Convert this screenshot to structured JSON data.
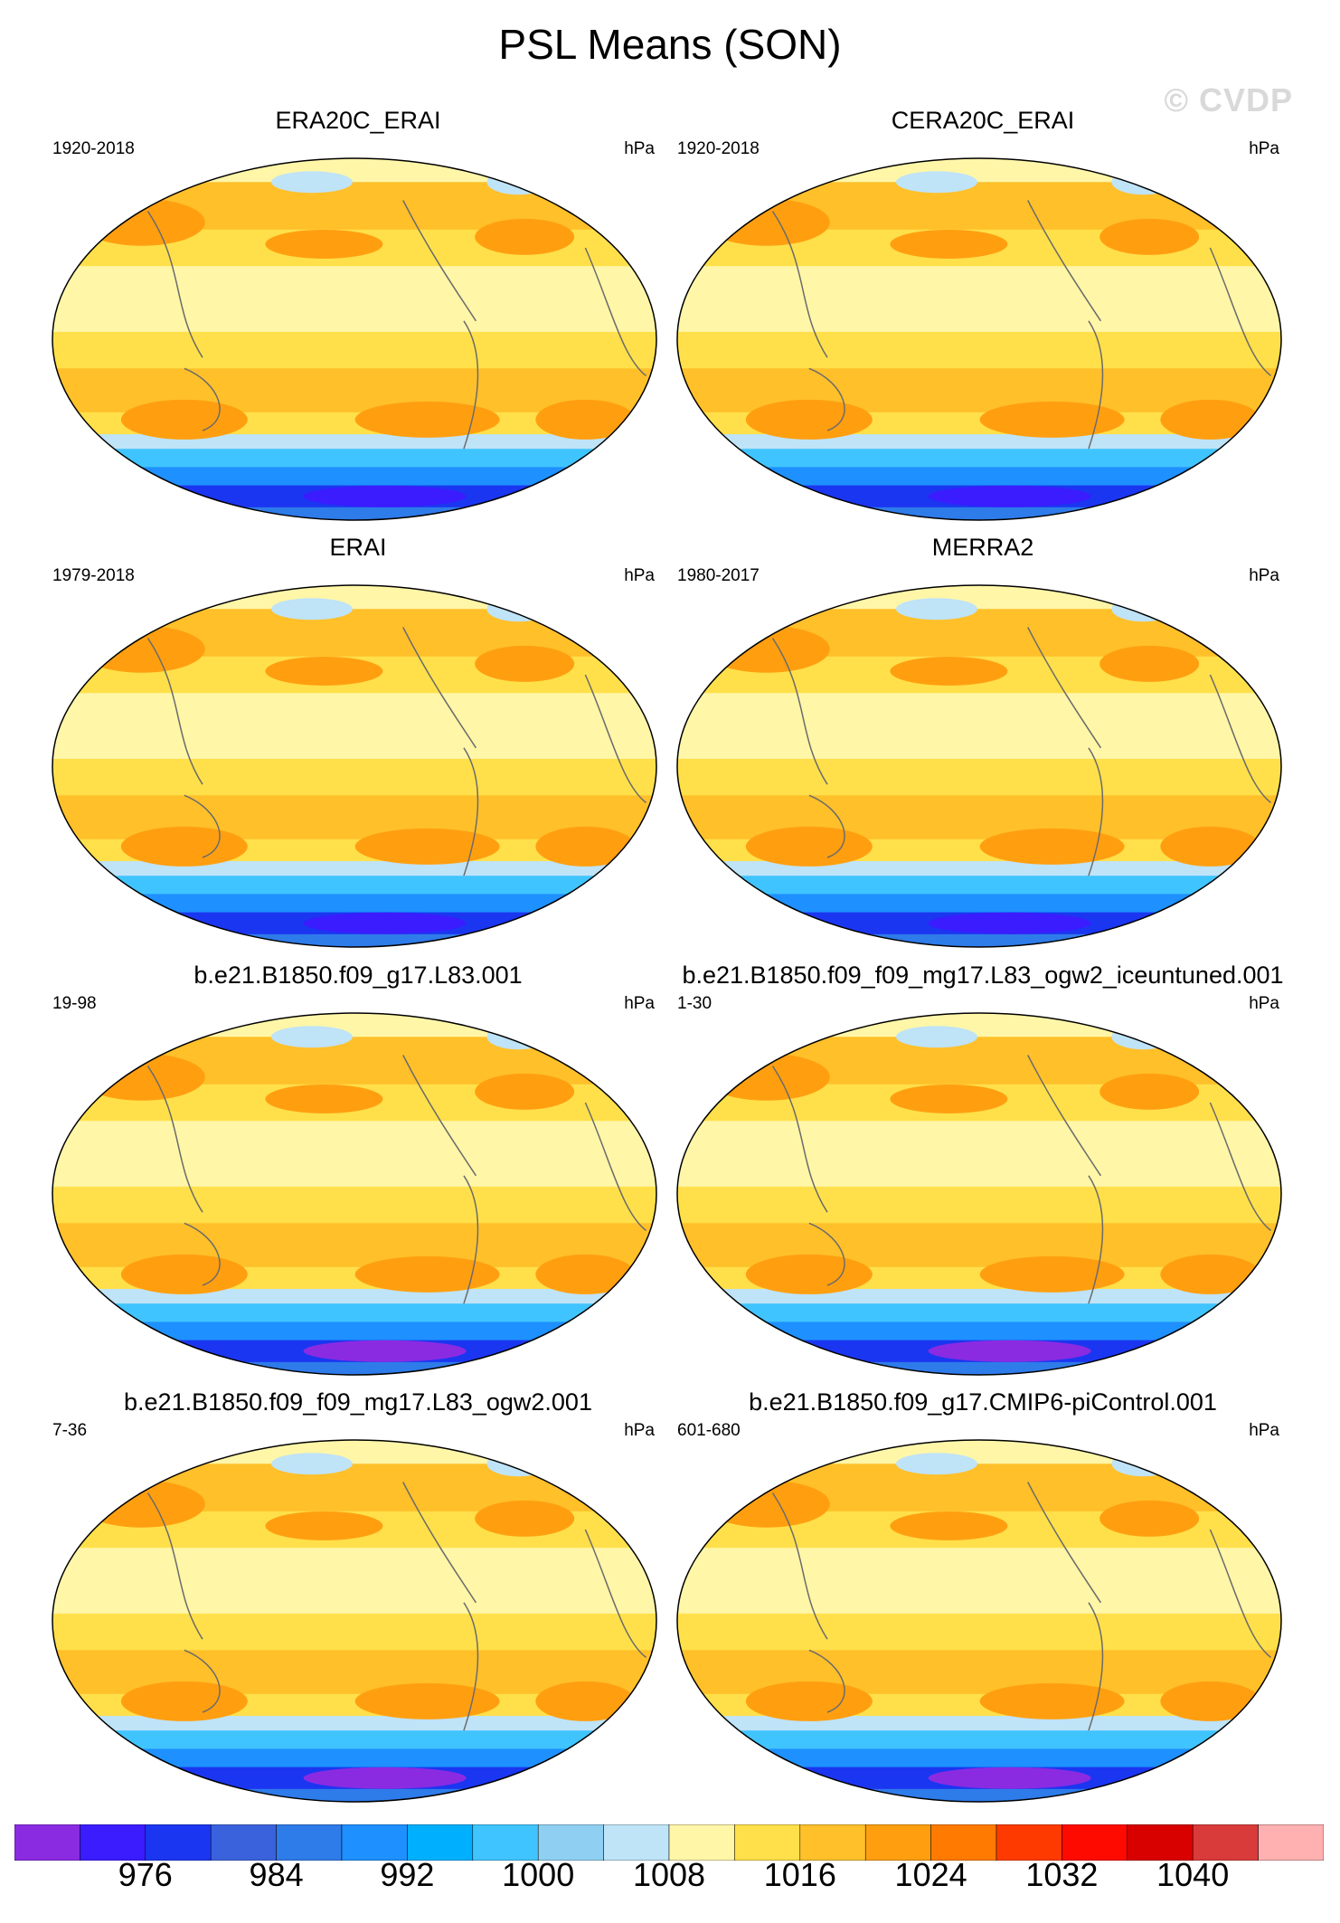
{
  "title": "PSL Means (SON)",
  "watermark": "© CVDP",
  "panels": [
    {
      "name": "ERA20C_ERAI",
      "years": "1920-2018",
      "unit": "hPa"
    },
    {
      "name": "CERA20C_ERAI",
      "years": "1920-2018",
      "unit": "hPa"
    },
    {
      "name": "ERAI",
      "years": "1979-2018",
      "unit": "hPa"
    },
    {
      "name": "MERRA2",
      "years": "1980-2017",
      "unit": "hPa"
    },
    {
      "name": "b.e21.B1850.f09_g17.L83.001",
      "years": "19-98",
      "unit": "hPa"
    },
    {
      "name": "b.e21.B1850.f09_f09_mg17.L83_ogw2_iceuntuned.001",
      "years": "1-30",
      "unit": "hPa"
    },
    {
      "name": "b.e21.B1850.f09_f09_mg17.L83_ogw2.001",
      "years": "7-36",
      "unit": "hPa"
    },
    {
      "name": "b.e21.B1850.f09_g17.CMIP6-piControl.001",
      "years": "601-680",
      "unit": "hPa"
    }
  ],
  "colorbar": {
    "colors": [
      "#8a2be2",
      "#3a1cff",
      "#1b36f0",
      "#3a62dd",
      "#2e7bea",
      "#1e90ff",
      "#00b0ff",
      "#40c4ff",
      "#8fd0f2",
      "#bfe3f7",
      "#fff6a8",
      "#ffe04a",
      "#ffc02a",
      "#ff9f10",
      "#ff7a00",
      "#ff3a00",
      "#ff0a00",
      "#d90000",
      "#d93a3a",
      "#ffb0b0"
    ],
    "labels": [
      "976",
      "984",
      "992",
      "1000",
      "1008",
      "1016",
      "1024",
      "1032",
      "1040"
    ]
  }
}
